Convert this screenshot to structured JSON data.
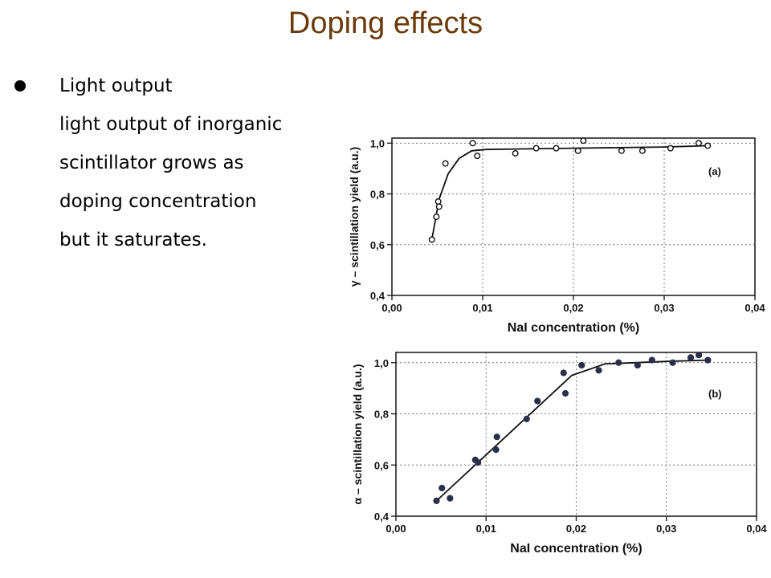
{
  "slide": {
    "title": "Doping effects",
    "bullet_heading": "Light output",
    "body_lines": [
      "light output of inorganic",
      "scintillator grows as",
      "doping concentration",
      "but it saturates."
    ]
  },
  "chart_data": [
    {
      "type": "scatter",
      "panel_label": "(a)",
      "xlabel": "NaI concentration (%)",
      "ylabel": "γ – scintillation yield (a.u.)",
      "xlim": [
        0.0,
        0.04
      ],
      "ylim": [
        0.4,
        1.02
      ],
      "xticks": [
        "0,00",
        "0,01",
        "0,02",
        "0,03",
        "0,04"
      ],
      "yticks": [
        "0,4",
        "0,6",
        "0,8",
        "1,0"
      ],
      "marker": "open",
      "points": [
        [
          0.0044,
          0.62
        ],
        [
          0.0049,
          0.71
        ],
        [
          0.0051,
          0.77
        ],
        [
          0.0052,
          0.75
        ],
        [
          0.0059,
          0.92
        ],
        [
          0.0089,
          1.0
        ],
        [
          0.0094,
          0.95
        ],
        [
          0.0136,
          0.96
        ],
        [
          0.0159,
          0.98
        ],
        [
          0.0181,
          0.98
        ],
        [
          0.0205,
          0.97
        ],
        [
          0.0211,
          1.01
        ],
        [
          0.0253,
          0.97
        ],
        [
          0.0276,
          0.97
        ],
        [
          0.0307,
          0.98
        ],
        [
          0.0338,
          1.0
        ],
        [
          0.0348,
          0.99
        ]
      ],
      "fit_line": [
        [
          0.0044,
          0.62
        ],
        [
          0.0052,
          0.78
        ],
        [
          0.0062,
          0.88
        ],
        [
          0.0074,
          0.94
        ],
        [
          0.0088,
          0.97
        ],
        [
          0.0104,
          0.975
        ],
        [
          0.02,
          0.98
        ],
        [
          0.03,
          0.985
        ],
        [
          0.0348,
          0.99
        ]
      ]
    },
    {
      "type": "scatter",
      "panel_label": "(b)",
      "xlabel": "NaI concentration (%)",
      "ylabel": "α – scintillation yield (a.u.)",
      "xlim": [
        0.0,
        0.04
      ],
      "ylim": [
        0.4,
        1.04
      ],
      "xticks": [
        "0,00",
        "0,01",
        "0,02",
        "0,03",
        "0,04"
      ],
      "yticks": [
        "0,4",
        "0,6",
        "0,8",
        "1,0"
      ],
      "marker": "filled",
      "points": [
        [
          0.0045,
          0.46
        ],
        [
          0.0051,
          0.51
        ],
        [
          0.006,
          0.47
        ],
        [
          0.0088,
          0.62
        ],
        [
          0.0091,
          0.61
        ],
        [
          0.0111,
          0.66
        ],
        [
          0.0112,
          0.71
        ],
        [
          0.0145,
          0.78
        ],
        [
          0.0157,
          0.85
        ],
        [
          0.0186,
          0.96
        ],
        [
          0.0188,
          0.88
        ],
        [
          0.0206,
          0.99
        ],
        [
          0.0225,
          0.97
        ],
        [
          0.0247,
          1.0
        ],
        [
          0.0268,
          0.99
        ],
        [
          0.0284,
          1.01
        ],
        [
          0.0307,
          1.0
        ],
        [
          0.0327,
          1.02
        ],
        [
          0.0336,
          1.03
        ],
        [
          0.0346,
          1.01
        ]
      ],
      "fit_line": [
        [
          0.0045,
          0.46
        ],
        [
          0.0195,
          0.95
        ],
        [
          0.0232,
          0.995
        ],
        [
          0.03,
          1.005
        ],
        [
          0.0346,
          1.01
        ]
      ]
    }
  ]
}
